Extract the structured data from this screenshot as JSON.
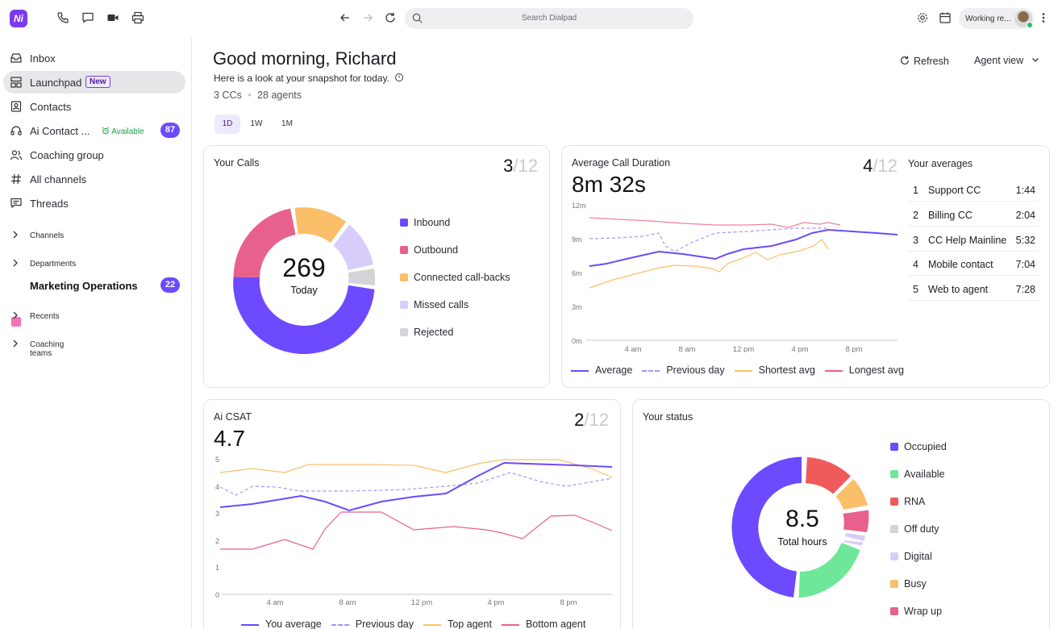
{
  "topbar": {
    "logo": "Ni",
    "search_placeholder": "Search Dialpad",
    "status": "Working re..."
  },
  "sidebar": {
    "items": [
      {
        "label": "Inbox",
        "icon": "inbox-icon"
      },
      {
        "label": "Launchpad",
        "icon": "launchpad-icon",
        "badge": "New"
      },
      {
        "label": "Contacts",
        "icon": "contacts-icon"
      },
      {
        "label": "Ai Contact ...",
        "icon": "headset-icon",
        "status": "Available",
        "count": "87"
      },
      {
        "label": "Coaching group",
        "icon": "people-icon"
      },
      {
        "label": "All channels",
        "icon": "hash-icon"
      },
      {
        "label": "Threads",
        "icon": "threads-icon"
      }
    ],
    "sections": [
      "Channels",
      "Departments",
      "Recents",
      "Coaching teams"
    ],
    "department": {
      "label": "Marketing Operations",
      "count": "22",
      "color": "#f472b6"
    }
  },
  "header": {
    "greeting": "Good morning, Richard",
    "subtitle": "Here is a look at your snapshot for today.",
    "ccs": "3 CCs",
    "agents": "28 agents",
    "ranges": [
      "1D",
      "1W",
      "1M"
    ],
    "selected_range": "1D",
    "refresh": "Refresh",
    "view": "Agent view"
  },
  "calls": {
    "title": "Your Calls",
    "rank": "3",
    "rank_total": "/12",
    "total": "269",
    "total_label": "Today",
    "legend": [
      {
        "label": "Inbound",
        "color": "#6d4aff"
      },
      {
        "label": "Outbound",
        "color": "#e8618c"
      },
      {
        "label": "Connected call-backs",
        "color": "#fbbf6a"
      },
      {
        "label": "Missed calls",
        "color": "#d8ccfb"
      },
      {
        "label": "Rejected",
        "color": "#d4d4d8"
      }
    ]
  },
  "duration": {
    "title": "Average Call Duration",
    "value": "8m 32s",
    "rank": "4",
    "rank_total": "/12",
    "y_ticks": [
      "12m",
      "9m",
      "6m",
      "3m",
      "0m"
    ],
    "x_ticks": [
      "4 am",
      "8 am",
      "12 pm",
      "4 pm",
      "8 pm"
    ],
    "legend": [
      {
        "label": "Average",
        "color": "#6d4aff",
        "style": "solid"
      },
      {
        "label": "Previous day",
        "color": "#a596f7",
        "style": "dashed"
      },
      {
        "label": "Shortest avg",
        "color": "#fbbf6a",
        "style": "solid"
      },
      {
        "label": "Longest avg",
        "color": "#e8618c",
        "style": "solid"
      }
    ]
  },
  "averages": {
    "title": "Your averages",
    "rows": [
      {
        "n": "1",
        "name": "Support CC",
        "time": "1:44"
      },
      {
        "n": "2",
        "name": "Billing CC",
        "time": "2:04"
      },
      {
        "n": "3",
        "name": "CC Help Mainline",
        "time": "5:32"
      },
      {
        "n": "4",
        "name": "Mobile contact",
        "time": "7:04"
      },
      {
        "n": "5",
        "name": "Web to agent",
        "time": "7:28"
      }
    ]
  },
  "csat": {
    "title": "Ai CSAT",
    "value": "4.7",
    "rank": "2",
    "rank_total": "/12",
    "y_ticks": [
      "5",
      "4",
      "3",
      "2",
      "1",
      "0"
    ],
    "x_ticks": [
      "4 am",
      "8 am",
      "12 pm",
      "4 pm",
      "8 pm"
    ],
    "legend": [
      {
        "label": "You average",
        "color": "#6d4aff",
        "style": "solid"
      },
      {
        "label": "Previous day",
        "color": "#a596f7",
        "style": "dashed"
      },
      {
        "label": "Top agent",
        "color": "#fbbf6a",
        "style": "solid"
      },
      {
        "label": "Bottom agent",
        "color": "#e8618c",
        "style": "solid"
      }
    ]
  },
  "status": {
    "title": "Your status",
    "total": "8.5",
    "total_label": "Total hours",
    "legend": [
      {
        "label": "Occupied",
        "color": "#6d4aff"
      },
      {
        "label": "Available",
        "color": "#6ee79a"
      },
      {
        "label": "RNA",
        "color": "#f05a5a"
      },
      {
        "label": "Off duty",
        "color": "#d4d4d8"
      },
      {
        "label": "Digital",
        "color": "#d8ccfb"
      },
      {
        "label": "Busy",
        "color": "#fbbf6a"
      },
      {
        "label": "Wrap up",
        "color": "#e8618c"
      }
    ]
  }
}
